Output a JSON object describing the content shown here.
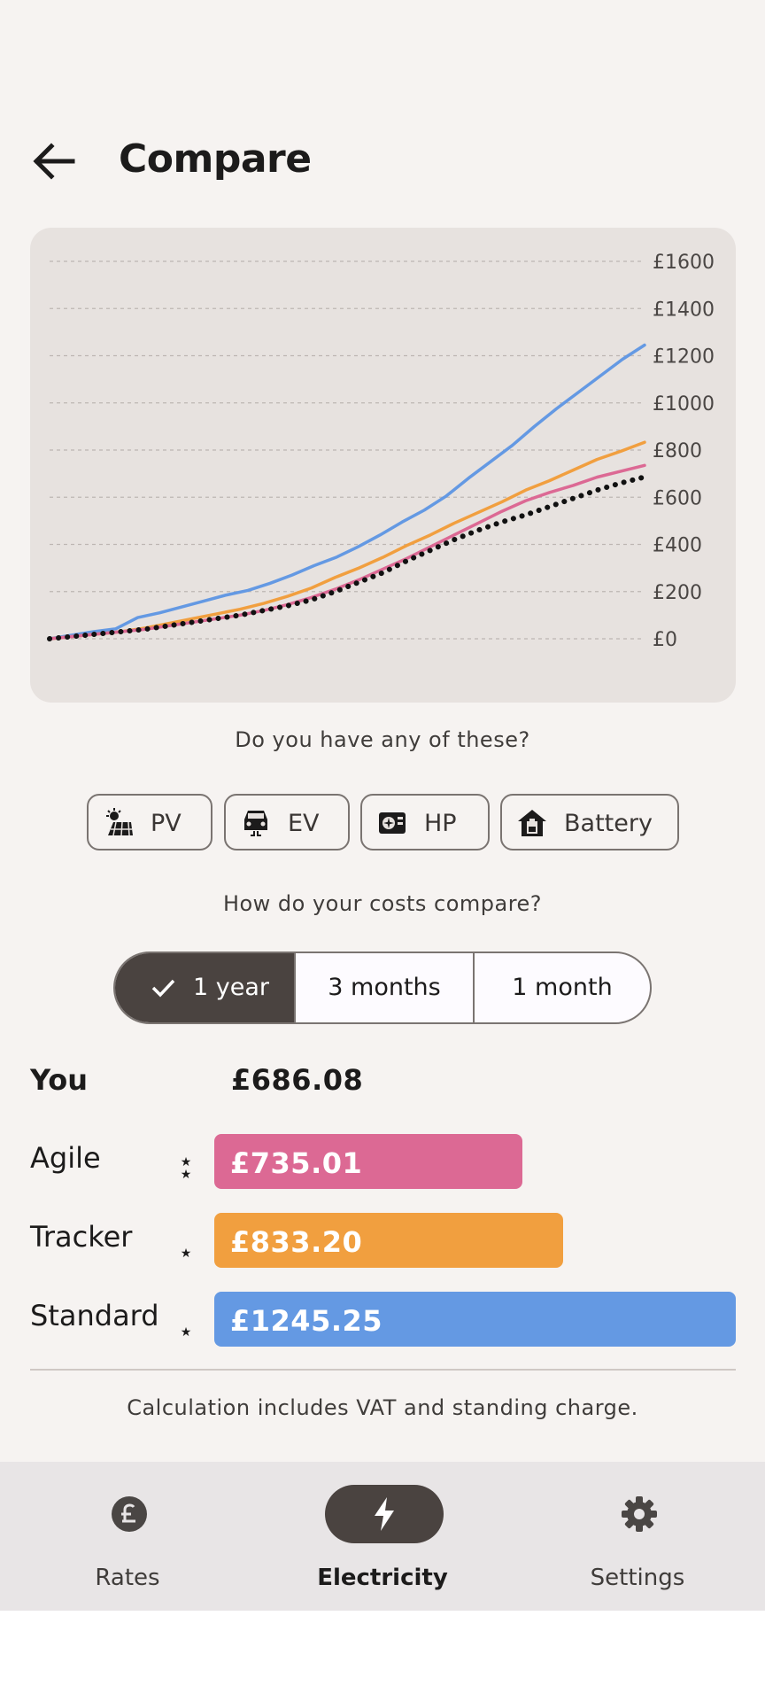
{
  "appbar": {
    "title": "Compare"
  },
  "chart_data": {
    "type": "line",
    "ylim": [
      0,
      1600
    ],
    "y_ticks": [
      "£0",
      "£200",
      "£400",
      "£600",
      "£800",
      "£1000",
      "£1200",
      "£1400",
      "£1600"
    ],
    "grid": true,
    "series": [
      {
        "color": "#6499e3",
        "style": "solid",
        "values": [
          0,
          15,
          30,
          42,
          90,
          110,
          135,
          160,
          185,
          205,
          235,
          270,
          310,
          345,
          390,
          440,
          495,
          545,
          605,
          680,
          750,
          820,
          900,
          975,
          1045,
          1115,
          1185,
          1245
        ]
      },
      {
        "color": "#f19f3f",
        "style": "solid",
        "values": [
          0,
          10,
          20,
          30,
          45,
          65,
          85,
          105,
          125,
          150,
          180,
          215,
          260,
          300,
          345,
          395,
          440,
          490,
          535,
          580,
          630,
          670,
          715,
          760,
          795,
          833
        ]
      },
      {
        "color": "#dc6994",
        "style": "solid",
        "values": [
          0,
          10,
          20,
          30,
          40,
          55,
          70,
          85,
          100,
          120,
          145,
          175,
          210,
          250,
          295,
          340,
          390,
          440,
          490,
          540,
          585,
          620,
          650,
          685,
          710,
          735
        ]
      },
      {
        "color": "#111111",
        "style": "dotted",
        "values": [
          0,
          10,
          20,
          30,
          40,
          55,
          70,
          85,
          100,
          120,
          140,
          165,
          200,
          240,
          280,
          330,
          375,
          420,
          460,
          495,
          525,
          560,
          595,
          630,
          660,
          686
        ]
      }
    ]
  },
  "devices": {
    "question": "Do you have any of these?",
    "chips": [
      {
        "label": "PV",
        "icon": "solar-panel-icon"
      },
      {
        "label": "EV",
        "icon": "car-charging-icon"
      },
      {
        "label": "HP",
        "icon": "heat-pump-icon"
      },
      {
        "label": "Battery",
        "icon": "home-battery-icon"
      }
    ]
  },
  "compare": {
    "question": "How do your costs compare?",
    "periods": [
      {
        "label": "1 year",
        "selected": true
      },
      {
        "label": "3 months",
        "selected": false
      },
      {
        "label": "1 month",
        "selected": false
      }
    ]
  },
  "you": {
    "label": "You",
    "value": "£686.08"
  },
  "tariffs": [
    {
      "name": "Agile",
      "value": "£735.01",
      "amount": 735.01,
      "color": "#dc6994",
      "stars": "★\n★"
    },
    {
      "name": "Tracker",
      "value": "£833.20",
      "amount": 833.2,
      "color": "#f19f3f",
      "stars": "★"
    },
    {
      "name": "Standard",
      "value": "£1245.25",
      "amount": 1245.25,
      "color": "#6499e3",
      "stars": "★"
    }
  ],
  "footnote": "Calculation includes VAT and standing charge.",
  "nav": {
    "items": [
      {
        "label": "Rates",
        "icon": "pound-icon",
        "active": false
      },
      {
        "label": "Electricity",
        "icon": "lightning-icon",
        "active": true
      },
      {
        "label": "Settings",
        "icon": "gear-icon",
        "active": false
      }
    ]
  }
}
